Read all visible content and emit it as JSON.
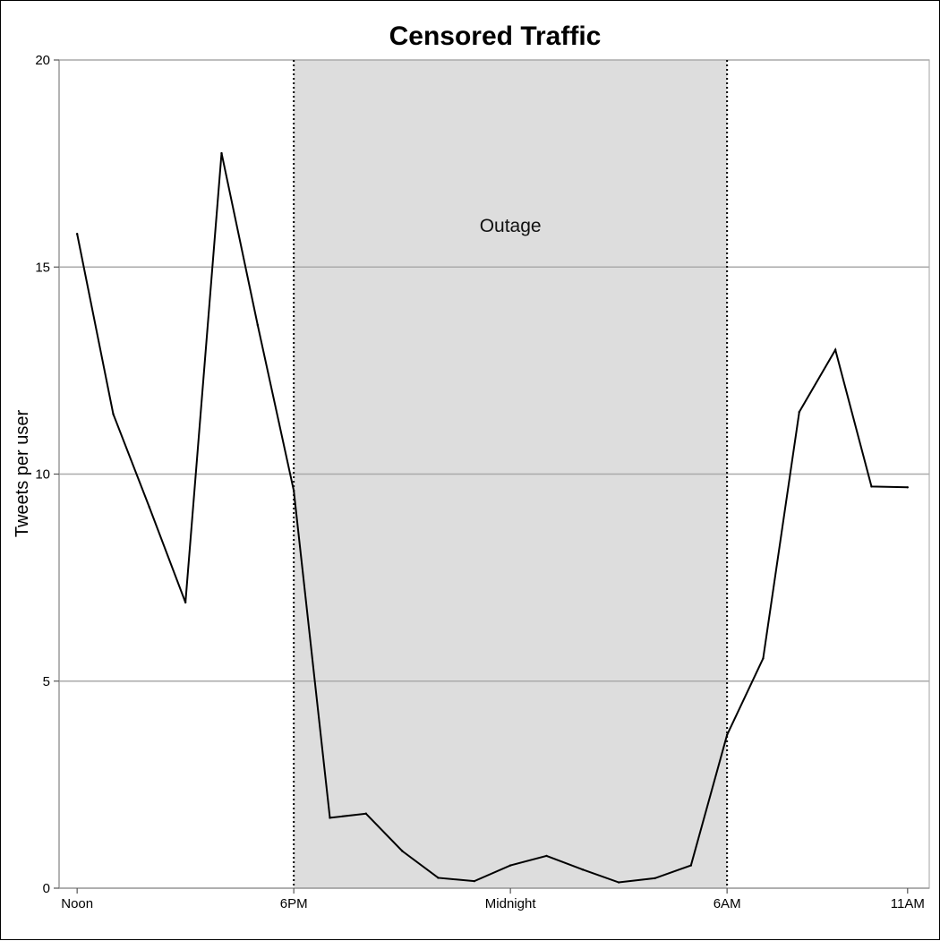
{
  "chart_data": {
    "type": "line",
    "title": "Censored Traffic",
    "xlabel": "",
    "ylabel": "Tweets per user",
    "x": [
      0,
      1,
      2,
      3,
      4,
      5,
      6,
      7,
      8,
      9,
      10,
      11,
      12,
      13,
      14,
      15,
      16,
      17,
      18,
      19,
      20,
      21,
      22,
      23
    ],
    "x_ticks": [
      {
        "x": 0,
        "label": "Noon"
      },
      {
        "x": 6,
        "label": "6PM"
      },
      {
        "x": 12,
        "label": "Midnight"
      },
      {
        "x": 18,
        "label": "6AM"
      },
      {
        "x": 23,
        "label": "11AM"
      }
    ],
    "xlim": [
      -0.5,
      23.6
    ],
    "ylim": [
      0,
      20
    ],
    "y_ticks": [
      0,
      5,
      10,
      15,
      20
    ],
    "grid": "horizontal",
    "series": [
      {
        "name": "",
        "color": "#000000",
        "values": [
          15.8,
          11.45,
          9.2,
          6.9,
          17.75,
          13.6,
          9.6,
          1.7,
          1.8,
          0.9,
          0.25,
          0.17,
          0.55,
          0.78,
          0.45,
          0.14,
          0.24,
          0.55,
          3.7,
          5.55,
          11.5,
          13.0,
          9.7,
          9.68
        ]
      }
    ],
    "shaded_region": {
      "x_start": 6,
      "x_end": 18,
      "label": "Outage",
      "label_y": 16,
      "color": "#dddddd"
    }
  }
}
